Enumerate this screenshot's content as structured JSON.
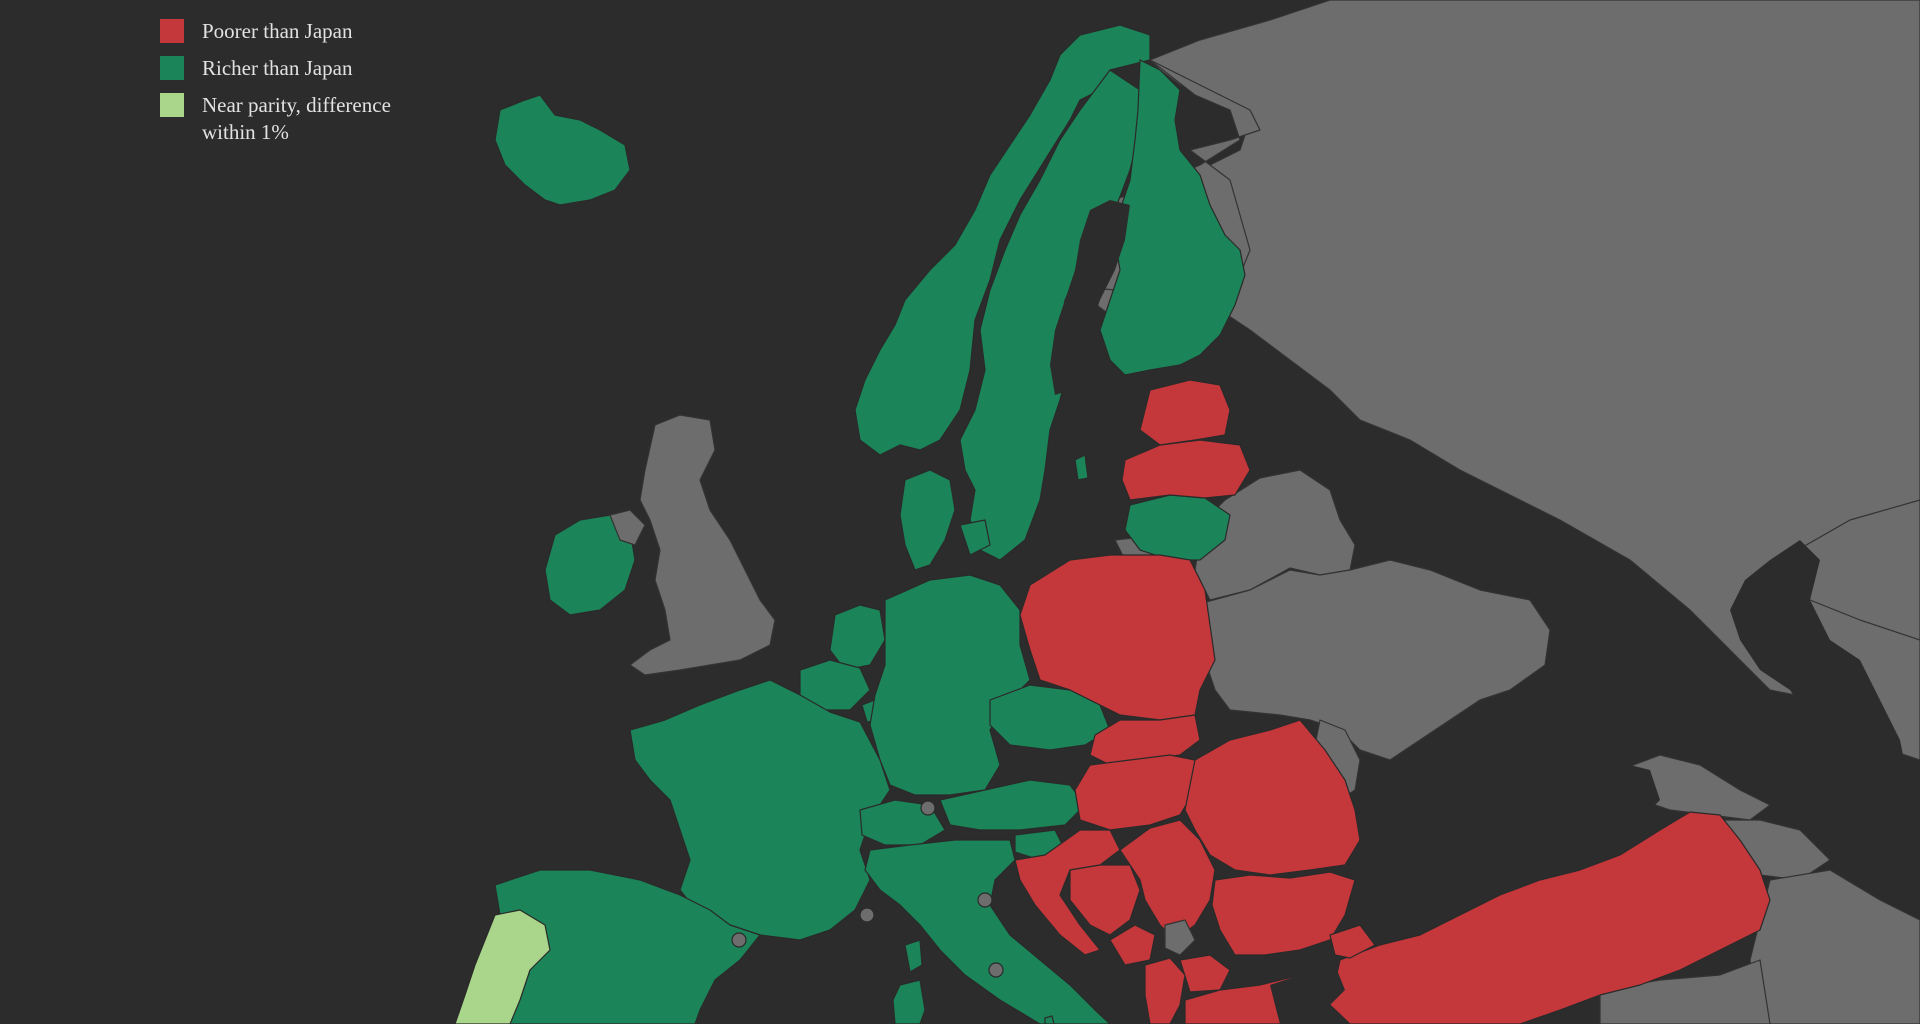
{
  "legend": {
    "items": [
      {
        "label": "Poorer than Japan",
        "color": "#c4373a"
      },
      {
        "label": "Richer than Japan",
        "color": "#1b8458"
      },
      {
        "label": "Near parity, difference within 1%",
        "color": "#a9d68a"
      }
    ]
  },
  "colors": {
    "background": "#2c2c2c",
    "no_data_land": "#6d6d6d",
    "border": "#2a2a2a"
  },
  "countries": [
    {
      "name": "Iceland",
      "category": "richer"
    },
    {
      "name": "Norway",
      "category": "richer"
    },
    {
      "name": "Sweden",
      "category": "richer"
    },
    {
      "name": "Finland",
      "category": "richer"
    },
    {
      "name": "Denmark",
      "category": "richer"
    },
    {
      "name": "Ireland",
      "category": "richer"
    },
    {
      "name": "United Kingdom",
      "category": "no_data"
    },
    {
      "name": "Netherlands",
      "category": "richer"
    },
    {
      "name": "Belgium",
      "category": "richer"
    },
    {
      "name": "Luxembourg",
      "category": "richer"
    },
    {
      "name": "Germany",
      "category": "richer"
    },
    {
      "name": "France",
      "category": "richer"
    },
    {
      "name": "Switzerland",
      "category": "richer"
    },
    {
      "name": "Austria",
      "category": "richer"
    },
    {
      "name": "Czechia",
      "category": "richer"
    },
    {
      "name": "Slovenia",
      "category": "richer"
    },
    {
      "name": "Italy",
      "category": "richer"
    },
    {
      "name": "Spain",
      "category": "richer"
    },
    {
      "name": "Portugal",
      "category": "parity"
    },
    {
      "name": "Lithuania",
      "category": "richer"
    },
    {
      "name": "Malta",
      "category": "richer"
    },
    {
      "name": "Estonia",
      "category": "poorer"
    },
    {
      "name": "Latvia",
      "category": "poorer"
    },
    {
      "name": "Poland",
      "category": "poorer"
    },
    {
      "name": "Slovakia",
      "category": "poorer"
    },
    {
      "name": "Hungary",
      "category": "poorer"
    },
    {
      "name": "Romania",
      "category": "poorer"
    },
    {
      "name": "Croatia",
      "category": "poorer"
    },
    {
      "name": "Bosnia and Herzegovina",
      "category": "poorer"
    },
    {
      "name": "Serbia",
      "category": "poorer"
    },
    {
      "name": "Montenegro",
      "category": "poorer"
    },
    {
      "name": "Kosovo",
      "category": "no_data"
    },
    {
      "name": "North Macedonia",
      "category": "poorer"
    },
    {
      "name": "Albania",
      "category": "poorer"
    },
    {
      "name": "Bulgaria",
      "category": "poorer"
    },
    {
      "name": "Greece",
      "category": "poorer"
    },
    {
      "name": "Turkey",
      "category": "poorer"
    },
    {
      "name": "Russia",
      "category": "no_data"
    },
    {
      "name": "Belarus",
      "category": "no_data"
    },
    {
      "name": "Ukraine",
      "category": "no_data"
    },
    {
      "name": "Moldova",
      "category": "no_data"
    },
    {
      "name": "Georgia",
      "category": "no_data"
    },
    {
      "name": "Armenia",
      "category": "no_data"
    },
    {
      "name": "Azerbaijan",
      "category": "no_data"
    },
    {
      "name": "Kazakhstan",
      "category": "no_data"
    },
    {
      "name": "Syria",
      "category": "no_data"
    },
    {
      "name": "Iraq",
      "category": "no_data"
    },
    {
      "name": "Iran",
      "category": "no_data"
    }
  ]
}
